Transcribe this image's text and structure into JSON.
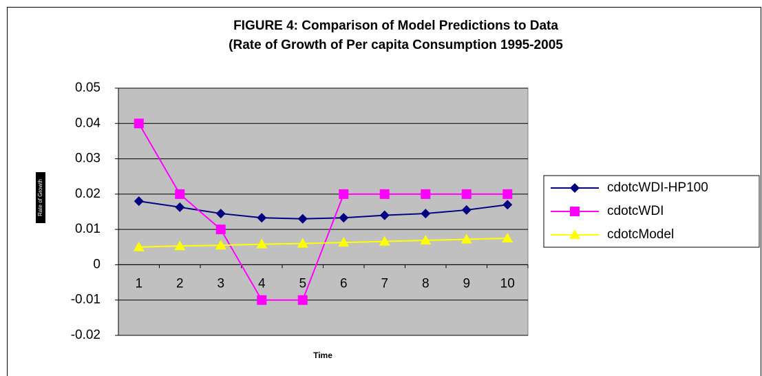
{
  "chart_data": {
    "type": "line",
    "title": "FIGURE 4: Comparison of Model Predictions to Data",
    "subtitle": "(Rate of Growth of Per capita Consumption 1995-2005",
    "x_label": "Time",
    "y_label": "Rate of Growth",
    "categories": [
      "1",
      "2",
      "3",
      "4",
      "5",
      "6",
      "7",
      "8",
      "9",
      "10"
    ],
    "series": [
      {
        "name": "cdotcWDI-HP100",
        "color": "#000080",
        "marker": "diamond",
        "values": [
          0.018,
          0.0163,
          0.0145,
          0.0133,
          0.013,
          0.0133,
          0.014,
          0.0145,
          0.0155,
          0.017
        ]
      },
      {
        "name": "cdotcWDI",
        "color": "#ff00ff",
        "marker": "square",
        "values": [
          0.04,
          0.02,
          0.01,
          -0.01,
          -0.01,
          0.02,
          0.02,
          0.02,
          0.02,
          0.02
        ]
      },
      {
        "name": "cdotcModel",
        "color": "#ffff00",
        "marker": "triangle",
        "values": [
          0.005,
          0.0053,
          0.0055,
          0.0058,
          0.006,
          0.0063,
          0.0066,
          0.0069,
          0.0072,
          0.0075
        ]
      }
    ],
    "ylim": [
      -0.02,
      0.05
    ],
    "yticks": [
      -0.02,
      -0.01,
      0,
      0.01,
      0.02,
      0.03,
      0.04,
      0.05
    ],
    "grid": true,
    "plot_background": "#c0c0c0",
    "legend": "right"
  }
}
